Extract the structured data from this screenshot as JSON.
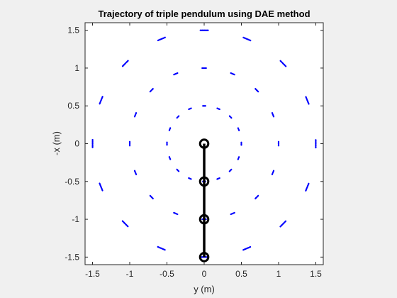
{
  "chart_data": {
    "type": "scatter",
    "title": "Trajectory of triple pendulum using DAE method",
    "xlabel": "y (m)",
    "ylabel": "-x (m)",
    "xlim": [
      -1.6,
      1.6
    ],
    "ylim": [
      -1.6,
      1.6
    ],
    "xticks": [
      -1.5,
      -1,
      -0.5,
      0,
      0.5,
      1,
      1.5
    ],
    "yticks": [
      -1.5,
      -1,
      -0.5,
      0,
      0.5,
      1,
      1.5
    ],
    "xtick_labels": [
      "-1.5",
      "-1",
      "-0.5",
      "0",
      "0.5",
      "1",
      "1.5"
    ],
    "ytick_labels": [
      "-1.5",
      "-1",
      "-0.5",
      "0",
      "0.5",
      "1",
      "1.5"
    ],
    "grid": false,
    "trajectory_color": "#0000ff",
    "pendulum_color": "#000000",
    "background_color": "#f0f0f0",
    "axes_color": "#ffffff",
    "rings": [
      {
        "radius": 0.5,
        "segments": 16,
        "segment_span_deg": 4
      },
      {
        "radius": 1.0,
        "segments": 16,
        "segment_span_deg": 3
      },
      {
        "radius": 1.5,
        "segments": 16,
        "segment_span_deg": 4
      }
    ],
    "pendulum": {
      "joints": [
        {
          "x": 0,
          "y": 0
        },
        {
          "x": 0,
          "y": -0.5
        },
        {
          "x": 0,
          "y": -1
        },
        {
          "x": 0,
          "y": -1.5
        }
      ]
    }
  }
}
